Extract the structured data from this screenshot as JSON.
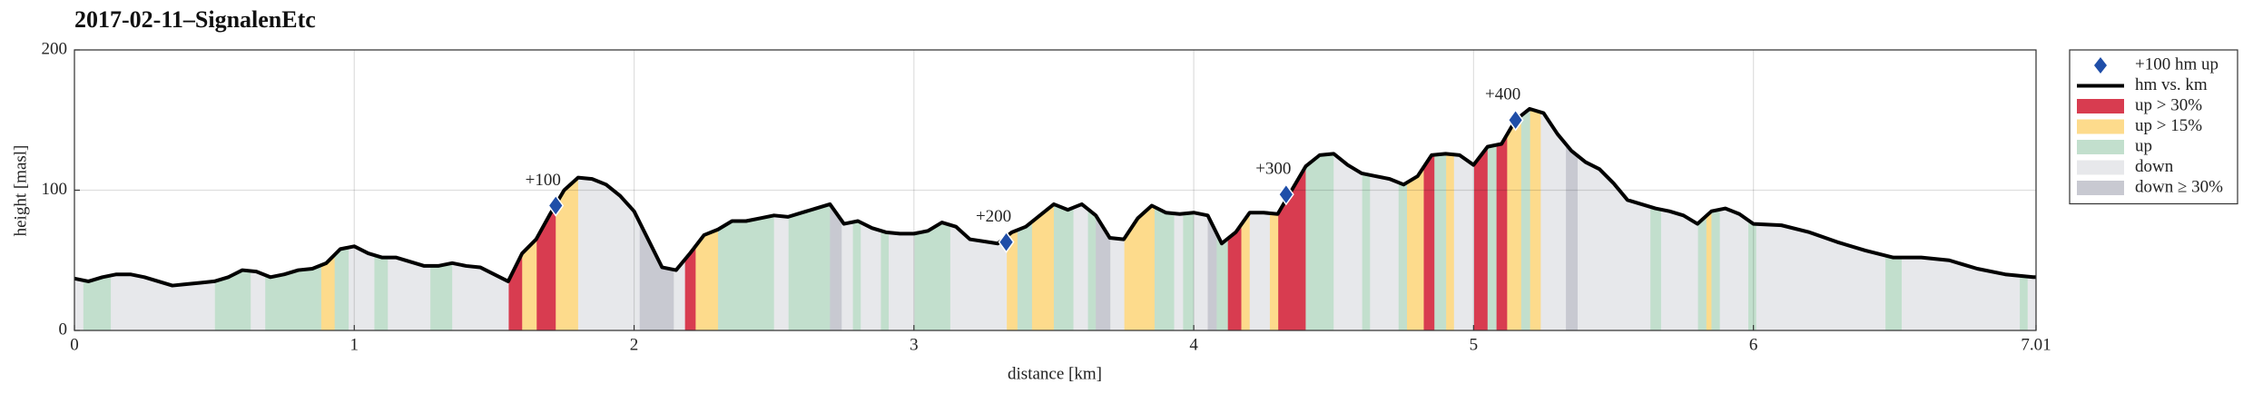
{
  "chart_data": {
    "type": "profile",
    "title": "2017-02-11–SignalenEtc",
    "x_label": "distance [km]",
    "y_label": "height [masl]",
    "xlim": [
      0,
      7.01
    ],
    "ylim": [
      0,
      200
    ],
    "xticks": [
      0,
      1,
      2,
      3,
      4,
      5,
      6,
      7.01
    ],
    "yticks": [
      0,
      100,
      200
    ],
    "grid": true,
    "legend": "outside right",
    "markers": {
      "name": "+100 hm up",
      "color": "#1f4ea8",
      "x": [
        1.72,
        3.33,
        4.33,
        5.15
      ],
      "values": [
        89,
        63,
        97,
        150
      ],
      "annotations": [
        "+100",
        "+200",
        "+300",
        "+400"
      ]
    },
    "series": [
      {
        "name": "hm vs. km",
        "color": "#000000",
        "x": [
          0,
          0.05,
          0.1,
          0.15,
          0.2,
          0.25,
          0.3,
          0.35,
          0.4,
          0.45,
          0.5,
          0.55,
          0.6,
          0.65,
          0.7,
          0.75,
          0.8,
          0.85,
          0.9,
          0.95,
          1.0,
          1.05,
          1.1,
          1.15,
          1.2,
          1.25,
          1.3,
          1.35,
          1.4,
          1.45,
          1.5,
          1.55,
          1.6,
          1.65,
          1.7,
          1.75,
          1.8,
          1.85,
          1.9,
          1.95,
          2.0,
          2.05,
          2.1,
          2.15,
          2.2,
          2.25,
          2.3,
          2.35,
          2.4,
          2.45,
          2.5,
          2.55,
          2.6,
          2.65,
          2.7,
          2.75,
          2.8,
          2.85,
          2.9,
          2.95,
          3.0,
          3.05,
          3.1,
          3.15,
          3.2,
          3.3,
          3.35,
          3.4,
          3.45,
          3.5,
          3.55,
          3.6,
          3.65,
          3.7,
          3.75,
          3.8,
          3.85,
          3.9,
          3.95,
          4.0,
          4.05,
          4.1,
          4.15,
          4.2,
          4.25,
          4.3,
          4.35,
          4.4,
          4.45,
          4.5,
          4.55,
          4.6,
          4.65,
          4.7,
          4.75,
          4.8,
          4.85,
          4.9,
          4.95,
          5.0,
          5.05,
          5.1,
          5.15,
          5.2,
          5.25,
          5.3,
          5.35,
          5.4,
          5.45,
          5.5,
          5.55,
          5.6,
          5.65,
          5.7,
          5.75,
          5.8,
          5.85,
          5.9,
          5.95,
          6.0,
          6.1,
          6.2,
          6.3,
          6.4,
          6.5,
          6.6,
          6.7,
          6.8,
          6.9,
          7.0,
          7.01
        ],
        "values": [
          37,
          35,
          38,
          40,
          40,
          38,
          35,
          32,
          33,
          34,
          35,
          38,
          43,
          42,
          38,
          40,
          43,
          44,
          48,
          58,
          60,
          55,
          52,
          52,
          49,
          46,
          46,
          48,
          46,
          45,
          40,
          35,
          55,
          65,
          83,
          100,
          109,
          108,
          104,
          96,
          85,
          65,
          45,
          43,
          55,
          68,
          72,
          78,
          78,
          80,
          82,
          81,
          84,
          87,
          90,
          76,
          78,
          73,
          70,
          69,
          69,
          71,
          77,
          74,
          65,
          62,
          70,
          74,
          82,
          90,
          86,
          90,
          82,
          66,
          65,
          80,
          89,
          84,
          83,
          84,
          82,
          62,
          70,
          84,
          84,
          83,
          100,
          117,
          125,
          126,
          118,
          112,
          110,
          108,
          104,
          110,
          125,
          126,
          125,
          118,
          131,
          133,
          150,
          158,
          155,
          140,
          128,
          120,
          115,
          105,
          93,
          90,
          87,
          85,
          82,
          76,
          85,
          87,
          83,
          76,
          75,
          70,
          63,
          57,
          52,
          52,
          50,
          44,
          40,
          38,
          38
        ]
      }
    ],
    "bands": [
      {
        "name": "up > 30%",
        "color": "#d83c50",
        "intervals": [
          [
            1.55,
            1.6
          ],
          [
            1.65,
            1.72
          ],
          [
            2.18,
            2.22
          ],
          [
            4.12,
            4.17
          ],
          [
            4.3,
            4.4
          ],
          [
            4.82,
            4.86
          ],
          [
            5.0,
            5.05
          ],
          [
            5.08,
            5.12
          ]
        ]
      },
      {
        "name": "up > 15%",
        "color": "#fddb8c",
        "intervals": [
          [
            0.88,
            0.93
          ],
          [
            1.6,
            1.65
          ],
          [
            1.72,
            1.8
          ],
          [
            2.22,
            2.3
          ],
          [
            3.33,
            3.37
          ],
          [
            3.42,
            3.5
          ],
          [
            3.75,
            3.86
          ],
          [
            4.17,
            4.2
          ],
          [
            4.27,
            4.3
          ],
          [
            4.76,
            4.82
          ],
          [
            4.9,
            4.93
          ],
          [
            5.12,
            5.17
          ],
          [
            5.2,
            5.24
          ],
          [
            5.83,
            5.85
          ]
        ]
      },
      {
        "name": "up",
        "color": "#c2dfcd",
        "intervals": [
          [
            0.03,
            0.13
          ],
          [
            0.5,
            0.63
          ],
          [
            0.68,
            0.88
          ],
          [
            0.93,
            0.98
          ],
          [
            1.07,
            1.12
          ],
          [
            1.27,
            1.35
          ],
          [
            2.3,
            2.5
          ],
          [
            2.55,
            2.7
          ],
          [
            2.78,
            2.81
          ],
          [
            2.88,
            2.91
          ],
          [
            3.0,
            3.13
          ],
          [
            3.37,
            3.42
          ],
          [
            3.5,
            3.57
          ],
          [
            3.62,
            3.65
          ],
          [
            3.86,
            3.93
          ],
          [
            3.96,
            4.0
          ],
          [
            4.08,
            4.12
          ],
          [
            4.4,
            4.5
          ],
          [
            4.6,
            4.63
          ],
          [
            4.73,
            4.76
          ],
          [
            4.86,
            4.9
          ],
          [
            5.05,
            5.08
          ],
          [
            5.17,
            5.2
          ],
          [
            5.63,
            5.67
          ],
          [
            5.8,
            5.83
          ],
          [
            5.85,
            5.88
          ],
          [
            5.98,
            6.01
          ],
          [
            6.47,
            6.53
          ],
          [
            6.95,
            6.98
          ]
        ]
      },
      {
        "name": "down",
        "color": "#e7e8eb",
        "intervals": [
          [
            0,
            0.03
          ],
          [
            0.13,
            0.5
          ],
          [
            0.63,
            0.68
          ],
          [
            0.98,
            1.07
          ],
          [
            1.12,
            1.27
          ],
          [
            1.35,
            1.55
          ],
          [
            1.8,
            2.02
          ],
          [
            2.14,
            2.18
          ],
          [
            2.5,
            2.55
          ],
          [
            2.74,
            2.78
          ],
          [
            2.81,
            2.88
          ],
          [
            2.91,
            3.0
          ],
          [
            3.13,
            3.33
          ],
          [
            3.57,
            3.62
          ],
          [
            3.7,
            3.75
          ],
          [
            3.93,
            3.96
          ],
          [
            4.0,
            4.05
          ],
          [
            4.2,
            4.27
          ],
          [
            4.5,
            4.6
          ],
          [
            4.63,
            4.73
          ],
          [
            4.93,
            5.0
          ],
          [
            5.24,
            5.33
          ],
          [
            5.37,
            5.63
          ],
          [
            5.67,
            5.8
          ],
          [
            5.88,
            5.98
          ],
          [
            6.01,
            6.47
          ],
          [
            6.53,
            6.95
          ],
          [
            6.98,
            7.01
          ]
        ]
      },
      {
        "name": "down ≥ 30%",
        "color": "#c8c9d1",
        "intervals": [
          [
            2.02,
            2.14
          ],
          [
            2.7,
            2.74
          ],
          [
            3.65,
            3.7
          ],
          [
            4.05,
            4.08
          ],
          [
            5.33,
            5.37
          ]
        ]
      }
    ]
  }
}
